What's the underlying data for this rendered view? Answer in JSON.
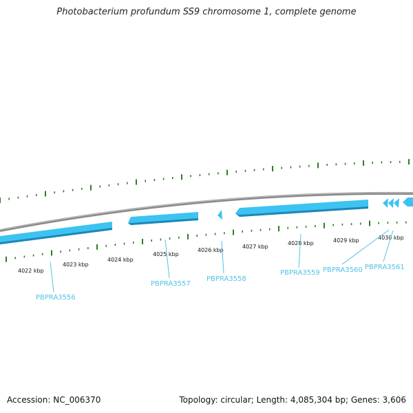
{
  "title": "Photobacterium profundum SS9 chromosome 1, complete genome",
  "footer": {
    "accession": "Accession: NC_006370",
    "summary": "Topology: circular; Length: 4,085,304 bp; Genes: 3,606"
  },
  "colors": {
    "backbone": "#8a8a8a",
    "gene_fill": "#3cc3f2",
    "gene_edge": "#1e86b5",
    "tick": "#2e7d22",
    "label": "#4fc3e6"
  },
  "kbp_labels": [
    "4022 kbp",
    "4023 kbp",
    "4024 kbp",
    "4025 kbp",
    "4026 kbp",
    "4027 kbp",
    "4028 kbp",
    "4029 kbp",
    "4030 kbp"
  ],
  "genes": [
    {
      "name": "PBPRA3556",
      "strand": "reverse"
    },
    {
      "name": "PBPRA3557",
      "strand": "reverse"
    },
    {
      "name": "PBPRA3558",
      "strand": "reverse"
    },
    {
      "name": "PBPRA3559",
      "strand": "reverse"
    },
    {
      "name": "PBPRA3560",
      "strand": "reverse"
    },
    {
      "name": "PBPRA3561",
      "strand": "reverse"
    }
  ]
}
